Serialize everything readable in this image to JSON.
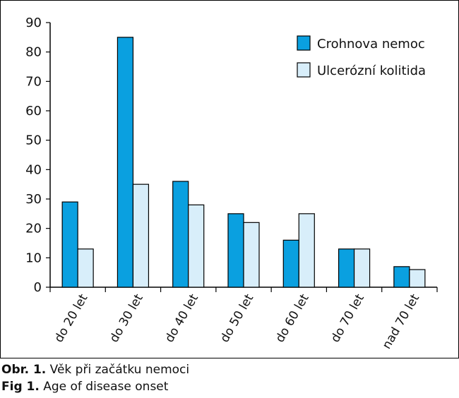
{
  "chart_data": {
    "type": "bar",
    "categories": [
      "do 20 let",
      "do 30 let",
      "do 40 let",
      "do 50 let",
      "do 60 let",
      "do 70 let",
      "nad 70 let"
    ],
    "series": [
      {
        "name": "Crohnova nemoc",
        "values": [
          29,
          85,
          36,
          25,
          16,
          13,
          7
        ],
        "color": "#0aa0e0"
      },
      {
        "name": "Ulcerózní kolitida",
        "values": [
          13,
          35,
          28,
          22,
          25,
          13,
          6
        ],
        "color": "#d8eefa"
      }
    ],
    "yticks": [
      0,
      10,
      20,
      30,
      40,
      50,
      60,
      70,
      80,
      90
    ],
    "ylim": [
      0,
      90
    ],
    "legend_position": "top-right",
    "grid": false
  },
  "captions": {
    "cz_label": "Obr. 1.",
    "cz_text": " Věk při začátku nemoci",
    "en_label": "Fig 1.",
    "en_text": " Age of disease onset"
  }
}
